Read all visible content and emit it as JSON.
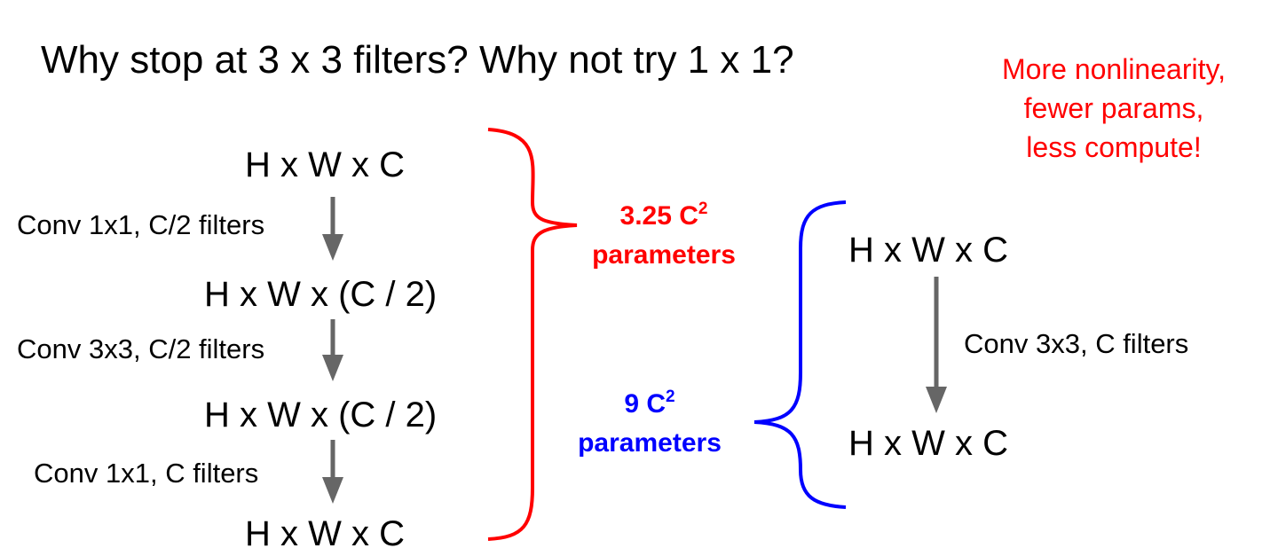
{
  "title": "Why stop at 3 x 3 filters? Why not try 1 x 1?",
  "note": {
    "lines": [
      "More nonlinearity,",
      "fewer params,",
      "less compute!"
    ],
    "color": "#ff0000"
  },
  "bottleneck": {
    "layers": [
      "H x W x C",
      "H x W x (C / 2)",
      "H x W x (C / 2)",
      "H x W x C"
    ],
    "ops": [
      "Conv 1x1, C/2 filters",
      "Conv 3x3, C/2 filters",
      "Conv 1x1, C filters"
    ],
    "params": {
      "value": "3.25 C",
      "power": "2",
      "label": "parameters",
      "color": "#ff0000"
    }
  },
  "single": {
    "layers": [
      "H x W x C",
      "H x W x C"
    ],
    "op": "Conv 3x3, C filters",
    "params": {
      "value": "9 C",
      "power": "2",
      "label": "parameters",
      "color": "#0000ff"
    }
  },
  "arrow_color": "#666666"
}
